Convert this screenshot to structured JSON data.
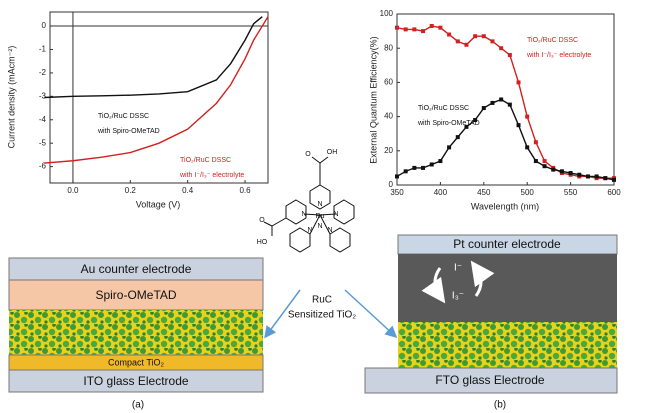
{
  "chart_data": [
    {
      "type": "line",
      "x_label": "Voltage (V)",
      "y_label": "Current density (mAcm⁻²)",
      "x": [
        -0.1,
        0,
        0.1,
        0.2,
        0.3,
        0.4,
        0.5,
        0.55,
        0.6,
        0.63,
        0.66,
        0.68
      ],
      "series": [
        {
          "color": "#111111",
          "values": [
            -3.05,
            -3.0,
            -2.98,
            -2.95,
            -2.9,
            -2.8,
            -2.3,
            -1.6,
            -0.6,
            0.1,
            0.4,
            null
          ]
        },
        {
          "color": "#d42020",
          "values": [
            -5.85,
            -5.75,
            -5.6,
            -5.4,
            -5.0,
            -4.4,
            -3.3,
            -2.5,
            -1.4,
            -0.6,
            0,
            0.4
          ]
        }
      ],
      "xlim": [
        -0.08,
        0.68
      ],
      "xticks": [
        {
          "value": 0,
          "label": "0.0"
        },
        {
          "value": 0.2,
          "label": "0.2"
        },
        {
          "value": 0.4,
          "label": "0.4"
        },
        {
          "value": 0.6,
          "label": "0.6"
        }
      ],
      "ylim": [
        -6.7,
        0.6
      ],
      "yticks": [
        0,
        -1,
        -2,
        -3,
        -4,
        -5,
        -6
      ],
      "zero_lines": true,
      "annotations": [
        {
          "lines": [
            "TiO₂/RuC DSSC",
            "with Spiro-OMeTAD"
          ],
          "color": "#111111"
        },
        {
          "lines": [
            "TiO₂/RuC DSSC",
            "with I⁻/I₃⁻ electrolyte"
          ],
          "color": "#d42020"
        }
      ]
    },
    {
      "type": "line",
      "x_label": "Wavelength (nm)",
      "y_label": "External Quantum Efficiency(%)",
      "x": [
        350,
        360,
        370,
        380,
        390,
        400,
        410,
        420,
        430,
        440,
        450,
        460,
        470,
        480,
        490,
        500,
        510,
        520,
        530,
        540,
        550,
        560,
        570,
        580,
        590,
        600
      ],
      "series": [
        {
          "color": "#d42020",
          "marker": "square",
          "values": [
            92,
            91,
            91,
            90,
            93,
            92,
            88,
            84,
            82,
            87,
            87,
            84,
            80,
            76,
            60,
            40,
            25,
            14,
            10,
            7,
            6,
            5,
            5,
            4,
            4,
            4
          ]
        },
        {
          "color": "#111111",
          "marker": "square",
          "values": [
            5,
            8,
            10,
            10,
            12,
            14,
            22,
            28,
            34,
            38,
            45,
            48,
            50,
            47,
            35,
            22,
            14,
            11,
            9,
            8,
            7,
            6,
            5,
            5,
            4,
            3
          ]
        }
      ],
      "xlim": [
        350,
        600
      ],
      "xticks": [
        350,
        400,
        450,
        500,
        550,
        600
      ],
      "ylim": [
        0,
        100
      ],
      "yticks": [
        0,
        20,
        40,
        60,
        80,
        100
      ],
      "zero_lines": false,
      "annotations": [
        {
          "lines": [
            "TiO₂/RuC DSSC",
            "with I⁻/I₃⁻ electrolyte"
          ],
          "color": "#d42020"
        },
        {
          "lines": [
            "TiO₂/RuC DSSC",
            "with Spiro-OMeTAD"
          ],
          "color": "#111111"
        }
      ]
    }
  ],
  "diagram": {
    "left_layers": [
      "Au counter electrode",
      "Spiro-OMeTAD",
      "Compact TiO₂",
      "ITO glass Electrode"
    ],
    "left_caption": "(a)",
    "right_layers": [
      "Pt counter electrode",
      "FTO glass Electrode"
    ],
    "right_caption": "(b)",
    "redox": [
      "I⁻",
      "I₃⁻"
    ],
    "center_label": [
      "RuC",
      "Sensitized TiO₂"
    ],
    "molecule_atoms": [
      "OH",
      "O",
      "HO",
      "O",
      "N",
      "N",
      "Ru",
      "N",
      "N",
      "N",
      "N"
    ]
  }
}
